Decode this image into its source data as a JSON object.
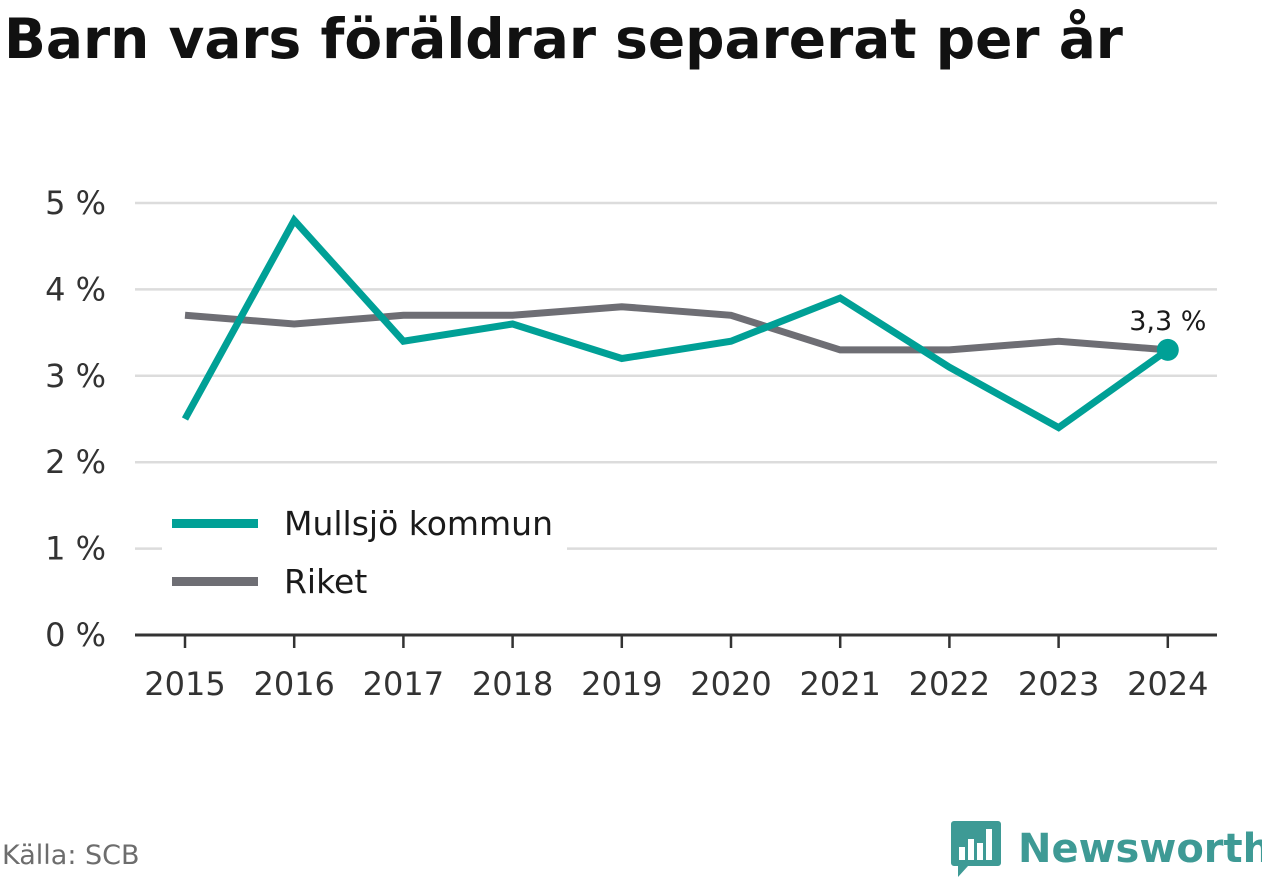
{
  "title": "Barn vars föräldrar separerat per år",
  "source": "Källa: SCB",
  "brand": {
    "name": "Newsworthy",
    "icon": "bar-chart-speech-bubble-icon",
    "color": "#3e9a95"
  },
  "chart_data": {
    "type": "line",
    "title": "Barn vars föräldrar separerat per år",
    "xlabel": "",
    "ylabel": "",
    "x": [
      "2015",
      "2016",
      "2017",
      "2018",
      "2019",
      "2020",
      "2021",
      "2022",
      "2023",
      "2024"
    ],
    "yticks": [
      "0 %",
      "1 %",
      "2 %",
      "3 %",
      "4 %",
      "5 %"
    ],
    "ylim": [
      0,
      5
    ],
    "grid": true,
    "legend_position": "bottom-left",
    "series": [
      {
        "name": "Mullsjö kommun",
        "color": "#00a096",
        "values": [
          2.5,
          4.8,
          3.4,
          3.6,
          3.2,
          3.4,
          3.9,
          3.1,
          2.4,
          3.3
        ]
      },
      {
        "name": "Riket",
        "color": "#6e6e74",
        "values": [
          3.7,
          3.6,
          3.7,
          3.7,
          3.8,
          3.7,
          3.3,
          3.3,
          3.4,
          3.3
        ]
      }
    ],
    "annotation": {
      "series": "Mullsjö kommun",
      "x": "2024",
      "value": 3.3,
      "label": "3,3 %"
    }
  }
}
